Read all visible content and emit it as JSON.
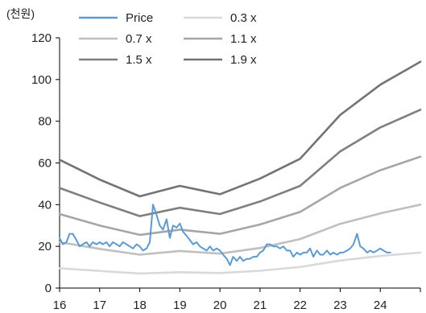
{
  "chart_data": {
    "type": "line",
    "y_unit_label": "(천원)",
    "title": "",
    "xlabel": "",
    "ylabel": "",
    "xlim": [
      16,
      25
    ],
    "ylim": [
      0,
      120
    ],
    "x_ticks": [
      {
        "value": 16,
        "label": "16"
      },
      {
        "value": 17,
        "label": "17"
      },
      {
        "value": 18,
        "label": "18"
      },
      {
        "value": 19,
        "label": "19"
      },
      {
        "value": 20,
        "label": "20"
      },
      {
        "value": 21,
        "label": "21"
      },
      {
        "value": 22,
        "label": "22"
      },
      {
        "value": 23,
        "label": "23"
      },
      {
        "value": 24,
        "label": "24"
      }
    ],
    "y_ticks": [
      {
        "value": 0,
        "label": "0"
      },
      {
        "value": 20,
        "label": "20"
      },
      {
        "value": 40,
        "label": "40"
      },
      {
        "value": 60,
        "label": "60"
      },
      {
        "value": 80,
        "label": "80"
      },
      {
        "value": 100,
        "label": "100"
      },
      {
        "value": 120,
        "label": "120"
      }
    ],
    "grid": false,
    "legend_position": "top",
    "series": [
      {
        "name": "Price",
        "color": "#5b9bd5",
        "x": [
          16.0,
          16.08,
          16.17,
          16.25,
          16.33,
          16.42,
          16.5,
          16.58,
          16.67,
          16.75,
          16.83,
          16.92,
          17.0,
          17.08,
          17.17,
          17.25,
          17.33,
          17.42,
          17.5,
          17.58,
          17.67,
          17.75,
          17.83,
          17.92,
          18.0,
          18.08,
          18.17,
          18.25,
          18.33,
          18.42,
          18.5,
          18.58,
          18.67,
          18.75,
          18.83,
          18.92,
          19.0,
          19.08,
          19.17,
          19.25,
          19.33,
          19.42,
          19.5,
          19.58,
          19.67,
          19.75,
          19.83,
          19.92,
          20.0,
          20.08,
          20.17,
          20.25,
          20.33,
          20.42,
          20.5,
          20.58,
          20.67,
          20.75,
          20.83,
          20.92,
          21.0,
          21.08,
          21.17,
          21.25,
          21.33,
          21.42,
          21.5,
          21.58,
          21.67,
          21.75,
          21.83,
          21.92,
          22.0,
          22.08,
          22.17,
          22.25,
          22.33,
          22.42,
          22.5,
          22.58,
          22.67,
          22.75,
          22.83,
          22.92,
          23.0,
          23.08,
          23.17,
          23.25,
          23.33,
          23.42,
          23.5,
          23.58,
          23.67,
          23.75,
          23.83,
          23.92,
          24.0,
          24.08,
          24.17,
          24.25
        ],
        "values": [
          24,
          21,
          22,
          26,
          26,
          23,
          20,
          21,
          22,
          20,
          22,
          21,
          22,
          21,
          22,
          20,
          22,
          21,
          20,
          22,
          21,
          20,
          19,
          21,
          20,
          18,
          19,
          22,
          40,
          35,
          30,
          28,
          33,
          24,
          30,
          29,
          31,
          27,
          25,
          23,
          21,
          22,
          20,
          19,
          18,
          20,
          18,
          19,
          18,
          16,
          14,
          11,
          15,
          13,
          15,
          13,
          14,
          14,
          15,
          15,
          17,
          18,
          21,
          21,
          20,
          20,
          19,
          20,
          18,
          18,
          15,
          17,
          16,
          17,
          17,
          19,
          15,
          18,
          16,
          16,
          18,
          16,
          17,
          16,
          17,
          17,
          18,
          19,
          21,
          26,
          20,
          19,
          17,
          18,
          17,
          18,
          19,
          18,
          17,
          17
        ]
      },
      {
        "name": "0.3 x",
        "color": "#d9d9d9",
        "x": [
          16,
          17,
          18,
          19,
          20,
          21,
          22,
          23,
          24,
          25
        ],
        "values": [
          9.5,
          8.2,
          7.0,
          7.6,
          7.2,
          8.3,
          10.1,
          13.2,
          15.4,
          17.0
        ]
      },
      {
        "name": "0.7 x",
        "color": "#bfbfbf",
        "x": [
          16,
          17,
          18,
          19,
          20,
          21,
          22,
          23,
          24,
          25
        ],
        "values": [
          22.0,
          18.8,
          16.0,
          17.8,
          16.5,
          19.2,
          23.5,
          30.8,
          35.8,
          40.0
        ]
      },
      {
        "name": "1.1 x",
        "color": "#a6a6a6",
        "x": [
          16,
          17,
          18,
          19,
          20,
          21,
          22,
          23,
          24,
          25
        ],
        "values": [
          35.5,
          30.0,
          25.5,
          28.0,
          26.0,
          30.5,
          36.5,
          48.0,
          56.5,
          63.0
        ]
      },
      {
        "name": "1.5 x",
        "color": "#7f7f7f",
        "x": [
          16,
          17,
          18,
          19,
          20,
          21,
          22,
          23,
          24,
          25
        ],
        "values": [
          48.0,
          41.0,
          34.5,
          38.5,
          35.5,
          41.5,
          49.0,
          65.5,
          77.0,
          85.5
        ]
      },
      {
        "name": "1.9 x",
        "color": "#737373",
        "x": [
          16,
          17,
          18,
          19,
          20,
          21,
          22,
          23,
          24,
          25
        ],
        "values": [
          61.5,
          52.0,
          44.0,
          49.0,
          45.0,
          52.5,
          62.0,
          83.0,
          97.5,
          108.5
        ]
      }
    ]
  }
}
